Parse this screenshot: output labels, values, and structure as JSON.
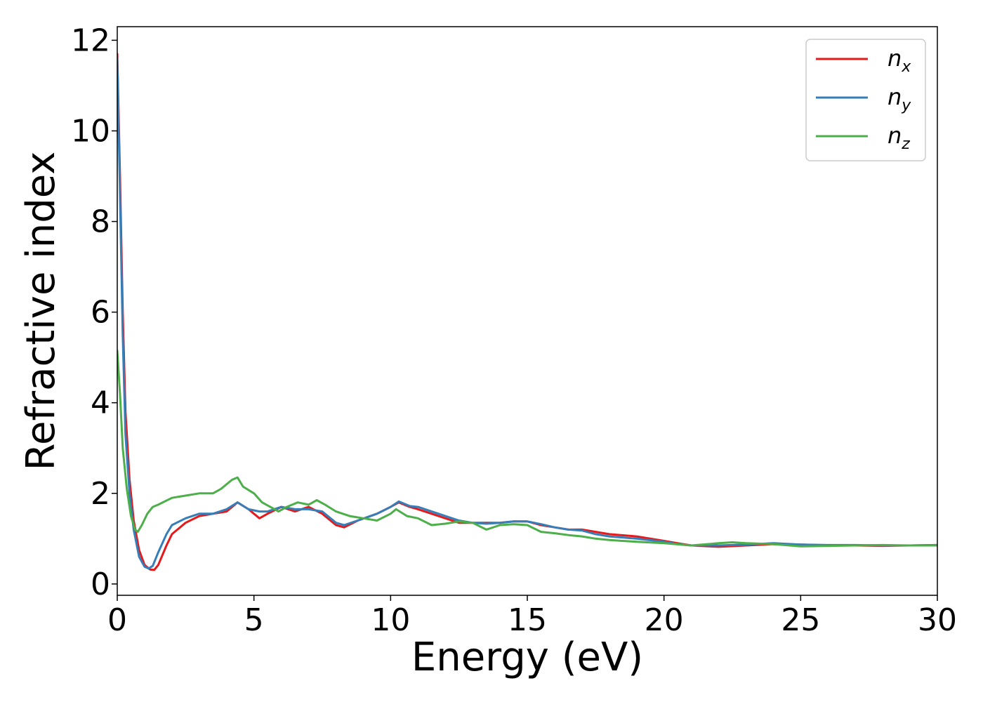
{
  "chart_data": {
    "type": "line",
    "xlabel": "Energy (eV)",
    "ylabel": "Refractive index",
    "xlim": [
      0,
      30
    ],
    "ylim": [
      -0.25,
      12.3
    ],
    "xticks": [
      0,
      5,
      10,
      15,
      20,
      25,
      30
    ],
    "yticks": [
      0,
      2,
      4,
      6,
      8,
      10,
      12
    ],
    "grid": false,
    "legend_position": "top-right",
    "series": [
      {
        "name": "n",
        "subscript": "x",
        "color": "#e41a1c",
        "x": [
          0,
          0.1,
          0.2,
          0.3,
          0.45,
          0.6,
          0.8,
          1.0,
          1.2,
          1.35,
          1.5,
          1.8,
          2.0,
          2.5,
          3.0,
          3.5,
          4.0,
          4.4,
          4.8,
          5.2,
          5.5,
          6.0,
          6.5,
          7.0,
          7.5,
          8.0,
          8.3,
          8.8,
          9.5,
          10.0,
          10.3,
          10.7,
          11.0,
          11.5,
          12.0,
          12.5,
          13.0,
          13.5,
          14.0,
          14.5,
          15.0,
          15.5,
          16.0,
          16.5,
          17.0,
          17.5,
          18.0,
          19.0,
          20.0,
          20.5,
          21.0,
          22.0,
          23.0,
          24.0,
          25.0,
          26.0,
          27.0,
          28.0,
          29.0,
          30.0
        ],
        "y": [
          11.7,
          9.0,
          6.0,
          3.8,
          2.3,
          1.4,
          0.75,
          0.42,
          0.32,
          0.31,
          0.42,
          0.85,
          1.1,
          1.35,
          1.5,
          1.55,
          1.6,
          1.8,
          1.65,
          1.45,
          1.55,
          1.7,
          1.6,
          1.7,
          1.55,
          1.3,
          1.25,
          1.4,
          1.55,
          1.7,
          1.8,
          1.7,
          1.65,
          1.55,
          1.45,
          1.35,
          1.35,
          1.35,
          1.35,
          1.38,
          1.38,
          1.3,
          1.25,
          1.2,
          1.2,
          1.15,
          1.1,
          1.05,
          0.95,
          0.9,
          0.85,
          0.82,
          0.85,
          0.88,
          0.87,
          0.85,
          0.85,
          0.84,
          0.85,
          0.86
        ]
      },
      {
        "name": "n",
        "subscript": "y",
        "color": "#377eb8",
        "x": [
          0,
          0.1,
          0.2,
          0.3,
          0.45,
          0.6,
          0.8,
          1.0,
          1.15,
          1.3,
          1.5,
          1.8,
          2.0,
          2.5,
          3.0,
          3.5,
          4.0,
          4.4,
          4.8,
          5.2,
          5.5,
          6.0,
          6.5,
          7.0,
          7.5,
          8.0,
          8.3,
          8.8,
          9.5,
          10.0,
          10.3,
          10.7,
          11.0,
          11.5,
          12.0,
          12.5,
          13.0,
          13.5,
          14.0,
          14.5,
          15.0,
          15.5,
          16.0,
          16.5,
          17.0,
          17.5,
          18.0,
          19.0,
          20.0,
          20.5,
          21.0,
          22.0,
          23.0,
          24.0,
          25.0,
          26.0,
          27.0,
          28.0,
          29.0,
          30.0
        ],
        "y": [
          11.6,
          8.6,
          5.5,
          3.3,
          2.0,
          1.2,
          0.6,
          0.38,
          0.34,
          0.4,
          0.7,
          1.1,
          1.3,
          1.45,
          1.55,
          1.55,
          1.65,
          1.8,
          1.65,
          1.6,
          1.6,
          1.7,
          1.65,
          1.65,
          1.6,
          1.35,
          1.3,
          1.4,
          1.55,
          1.7,
          1.82,
          1.72,
          1.7,
          1.6,
          1.5,
          1.4,
          1.35,
          1.33,
          1.35,
          1.38,
          1.38,
          1.32,
          1.25,
          1.2,
          1.18,
          1.1,
          1.05,
          1.0,
          0.93,
          0.88,
          0.85,
          0.85,
          0.87,
          0.9,
          0.87,
          0.86,
          0.86,
          0.85,
          0.85,
          0.86
        ]
      },
      {
        "name": "n",
        "subscript": "z",
        "color": "#4daf4a",
        "x": [
          0,
          0.1,
          0.2,
          0.35,
          0.5,
          0.65,
          0.75,
          0.9,
          1.1,
          1.3,
          1.5,
          2.0,
          2.5,
          3.0,
          3.5,
          3.8,
          4.2,
          4.4,
          4.6,
          5.0,
          5.3,
          5.6,
          5.9,
          6.2,
          6.6,
          7.0,
          7.3,
          7.6,
          8.0,
          8.5,
          9.0,
          9.5,
          10.0,
          10.2,
          10.6,
          11.0,
          11.5,
          12.0,
          12.5,
          13.0,
          13.5,
          14.0,
          14.5,
          15.0,
          15.5,
          16.0,
          16.5,
          17.0,
          17.5,
          18.0,
          19.0,
          20.0,
          21.0,
          22.0,
          22.5,
          23.0,
          24.0,
          25.0,
          26.0,
          27.0,
          28.0,
          29.0,
          30.0
        ],
        "y": [
          5.15,
          4.2,
          3.0,
          2.1,
          1.5,
          1.2,
          1.15,
          1.3,
          1.55,
          1.7,
          1.75,
          1.9,
          1.95,
          2.0,
          2.0,
          2.1,
          2.3,
          2.35,
          2.15,
          2.0,
          1.8,
          1.7,
          1.6,
          1.7,
          1.8,
          1.75,
          1.85,
          1.75,
          1.6,
          1.5,
          1.45,
          1.4,
          1.55,
          1.65,
          1.5,
          1.45,
          1.3,
          1.33,
          1.38,
          1.35,
          1.2,
          1.3,
          1.32,
          1.3,
          1.15,
          1.12,
          1.08,
          1.05,
          1.0,
          0.97,
          0.93,
          0.9,
          0.85,
          0.9,
          0.92,
          0.9,
          0.88,
          0.83,
          0.84,
          0.85,
          0.86,
          0.85,
          0.85
        ]
      }
    ]
  }
}
